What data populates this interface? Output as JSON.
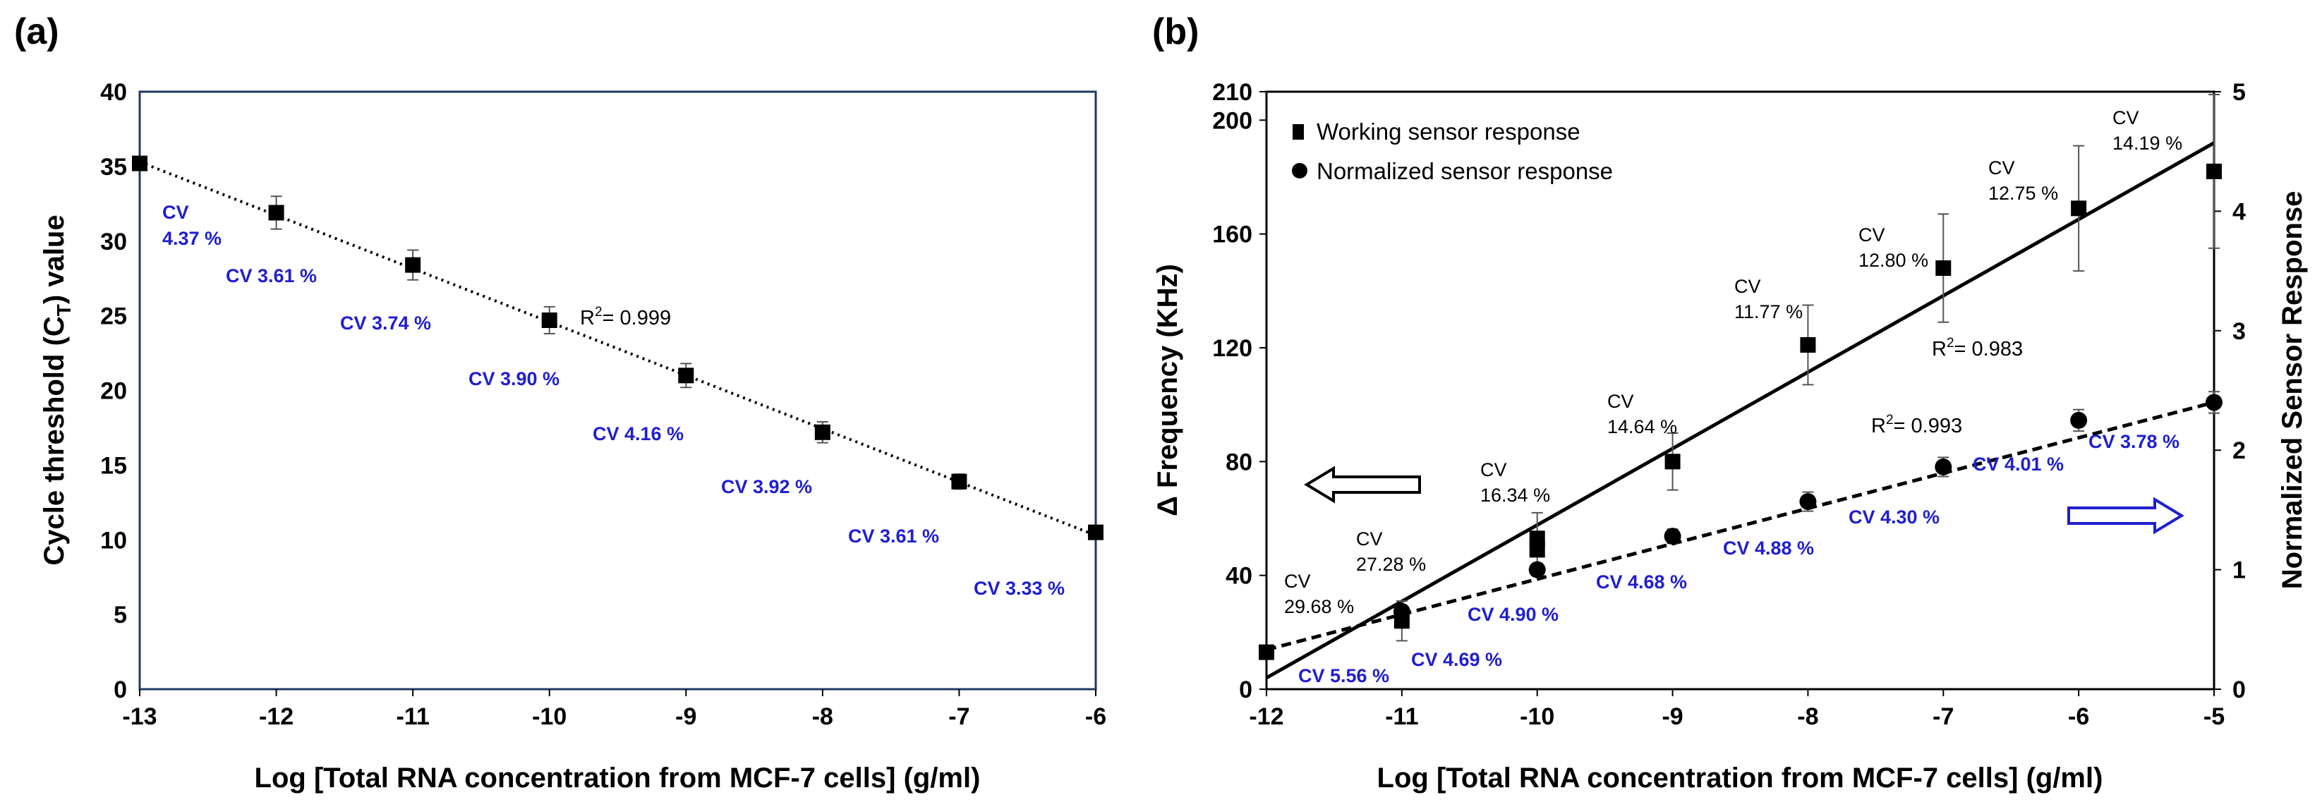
{
  "chart_data": [
    {
      "panel": "(a)",
      "type": "scatter",
      "xlabel": "Log [Total RNA concentration from MCF-7 cells] (g/ml)",
      "ylabel": "Cycle threshold (C",
      "ylabel_sub": "T",
      "ylabel_suffix": ") value",
      "xlim": [
        -13,
        -6
      ],
      "ylim": [
        0,
        40
      ],
      "xticks": [
        -13,
        -12,
        -11,
        -10,
        -9,
        -8,
        -7,
        -6
      ],
      "yticks": [
        0,
        5,
        10,
        15,
        20,
        25,
        30,
        35,
        40
      ],
      "series": [
        {
          "marker": "square",
          "x": [
            -13,
            -12,
            -11,
            -10,
            -9,
            -8,
            -7,
            -6
          ],
          "y": [
            35.2,
            31.9,
            28.4,
            24.7,
            21.0,
            17.2,
            13.9,
            10.5
          ],
          "err": [
            0.0,
            1.1,
            1.0,
            0.9,
            0.8,
            0.7,
            0.5,
            0.3
          ]
        }
      ],
      "fit": {
        "style": "dotted",
        "x": [
          -13,
          -6
        ],
        "y": [
          35.3,
          10.3
        ]
      },
      "r2_label": {
        "prefix": "R",
        "sup": "2",
        "suffix": "= 0.999"
      },
      "annotations": [
        {
          "text": "CV",
          "color": "blue"
        },
        {
          "text": "4.37 %",
          "color": "blue"
        },
        {
          "text": "CV 3.61 %",
          "color": "blue"
        },
        {
          "text": "CV 3.74 %",
          "color": "blue"
        },
        {
          "text": "CV 3.90 %",
          "color": "blue"
        },
        {
          "text": "CV 4.16 %",
          "color": "blue"
        },
        {
          "text": "CV 3.92 %",
          "color": "blue"
        },
        {
          "text": "CV 3.61 %",
          "color": "blue"
        },
        {
          "text": "CV 3.33 %",
          "color": "blue"
        }
      ]
    },
    {
      "panel": "(b)",
      "type": "scatter",
      "xlabel": "Log [Total RNA concentration from MCF-7 cells] (g/ml)",
      "ylabel": "Δ Frequency (KHz)",
      "y2label": "Normalized Sensor Response",
      "xlim": [
        -12,
        -5
      ],
      "ylim": [
        0,
        210
      ],
      "y2lim": [
        0,
        5
      ],
      "xticks": [
        -12,
        -11,
        -10,
        -9,
        -8,
        -7,
        -6,
        -5
      ],
      "yticks": [
        0,
        40,
        80,
        120,
        160,
        200,
        210
      ],
      "y2ticks": [
        0,
        1,
        2,
        3,
        4,
        5
      ],
      "legend": [
        "Working sensor response",
        "Normalized sensor response"
      ],
      "series": [
        {
          "name": "Working sensor response",
          "axis": "left",
          "marker": "square",
          "x": [
            -12,
            -11,
            -10,
            -10,
            -9,
            -8,
            -7,
            -6,
            -5
          ],
          "y": [
            13,
            24,
            53,
            49,
            80,
            121,
            148,
            169,
            182
          ],
          "err": [
            0,
            7,
            9,
            0,
            10,
            14,
            19,
            22,
            27
          ]
        },
        {
          "name": "Normalized sensor response",
          "axis": "right",
          "marker": "circle",
          "x": [
            -11,
            -10,
            -9,
            -8,
            -7,
            -6,
            -5
          ],
          "y": [
            0.65,
            1.0,
            1.28,
            1.57,
            1.86,
            2.25,
            2.4
          ],
          "err": [
            0.03,
            0.05,
            0.06,
            0.08,
            0.08,
            0.09,
            0.09
          ]
        }
      ],
      "fits": [
        {
          "style": "solid",
          "axis": "left",
          "x": [
            -12,
            -5
          ],
          "y": [
            4,
            192
          ]
        },
        {
          "style": "dashed",
          "axis": "right",
          "x": [
            -12,
            -5
          ],
          "y": [
            0.33,
            2.4
          ]
        }
      ],
      "r2_labels": [
        {
          "prefix": "R",
          "sup": "2",
          "suffix": "= 0.983"
        },
        {
          "prefix": "R",
          "sup": "2",
          "suffix": "= 0.993"
        }
      ],
      "annotations_black": [
        [
          "CV",
          "29.68 %"
        ],
        [
          "CV",
          "27.28 %"
        ],
        [
          "CV",
          "16.34 %"
        ],
        [
          "CV",
          "14.64 %"
        ],
        [
          "CV",
          "11.77 %"
        ],
        [
          "CV",
          "12.80 %"
        ],
        [
          "CV",
          "12.75 %"
        ],
        [
          "CV",
          "14.19 %"
        ]
      ],
      "annotations_blue": [
        "CV 5.56 %",
        "CV 4.69 %",
        "CV 4.90 %",
        "CV 4.68 %",
        "CV 4.88 %",
        "CV 4.30 %",
        "CV 4.01 %",
        "CV 3.78 %"
      ],
      "arrow_left_color": "#000000",
      "arrow_right_color": "#1f1fd0"
    }
  ]
}
